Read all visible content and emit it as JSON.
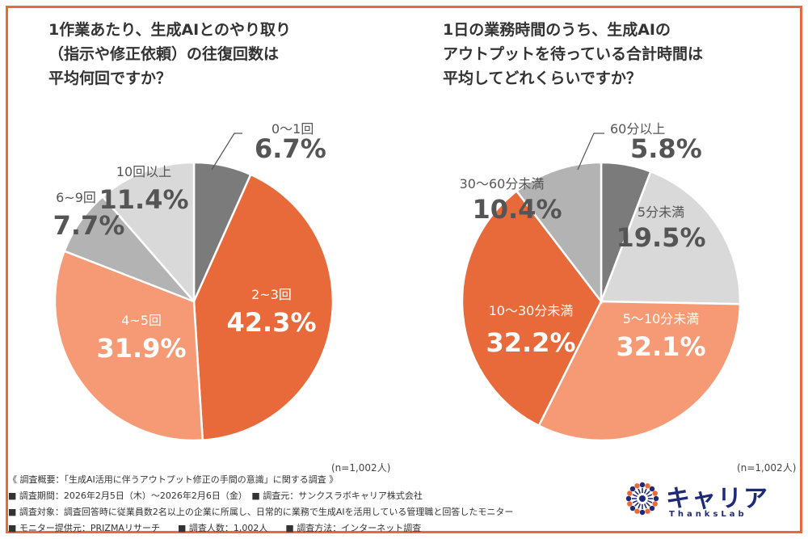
{
  "chart_data": [
    {
      "type": "pie",
      "title": "1作業あたり、生成AIとのやり取り\n（指示や修正依頼）の往復回数は\n平均何回ですか？",
      "labels": [
        "0～1回",
        "2~3回",
        "4~5回",
        "6~9回",
        "10回以上"
      ],
      "values": [
        6.7,
        42.3,
        31.9,
        7.7,
        11.4
      ],
      "value_labels": [
        "6.7%",
        "42.3%",
        "31.9%",
        "7.7%",
        "11.4%"
      ],
      "colors": [
        "#7b7b7b",
        "#e8693a",
        "#f59a74",
        "#b3b3b3",
        "#d9d9d9"
      ],
      "note": "(n=1,002人)"
    },
    {
      "type": "pie",
      "title": "1日の業務時間のうち、生成AIの\nアウトプットを待っている合計時間は\n平均してどれくらいですか？",
      "labels": [
        "60分以上",
        "5分未満",
        "5～10分未満",
        "10～30分未満",
        "30～60分未満"
      ],
      "values": [
        5.8,
        19.5,
        32.1,
        32.2,
        10.4
      ],
      "value_labels": [
        "5.8%",
        "19.5%",
        "32.1%",
        "32.2%",
        "10.4%"
      ],
      "colors": [
        "#7b7b7b",
        "#d9d9d9",
        "#f59a74",
        "#e8693a",
        "#b3b3b3"
      ],
      "note": "(n=1,002人)"
    }
  ],
  "footer": {
    "line1": "《 調査概要：「生成AI活用に伴うアウトプット修正の手間の意識」に関する調査 》",
    "line2": "■ 調査期間：2026年2月5日（木）～2026年2月6日（金）　■ 調査元：サンクスラボキャリア株式会社",
    "line3": "■ 調査対象：調査回答時に従業員数2名以上の企業に所属し、日常的に業務で生成AIを活用している管理職と回答したモニター",
    "line4": "■ モニター提供元：PRIZMAリサーチ　　■ 調査人数：1,002人　　■ 調査方法：インターネット調査"
  },
  "logo": {
    "name": "キャリア",
    "sub": "ThanksLab"
  }
}
